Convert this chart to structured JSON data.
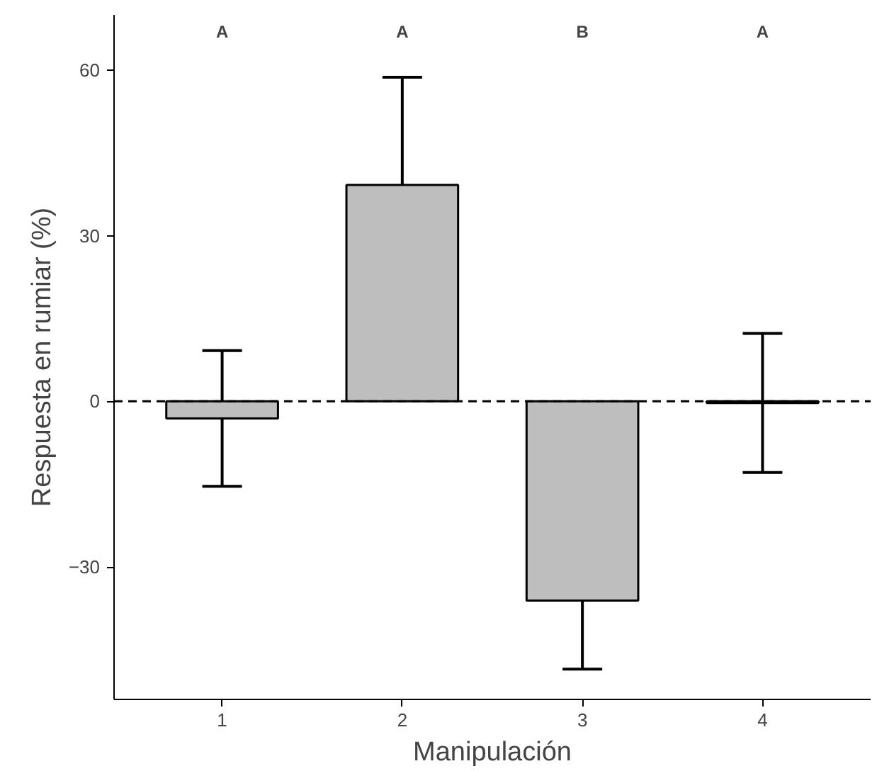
{
  "chart_data": {
    "type": "bar",
    "xlabel": "Manipulación",
    "ylabel": "Respuesta en rumiar (%)",
    "categories": [
      "1",
      "2",
      "3",
      "4"
    ],
    "values": [
      -3.1,
      39.2,
      -36.1,
      -0.3
    ],
    "errors": [
      12.3,
      19.5,
      12.4,
      12.6
    ],
    "color": "#bebebe",
    "ylim": [
      -54,
      70
    ],
    "yticks": [
      -30,
      0,
      30,
      60
    ],
    "ref_lines": [
      {
        "axis": "y",
        "value": 0,
        "line_style": "dashed"
      }
    ],
    "annotations": [
      "A",
      "A",
      "B",
      "A"
    ],
    "grid": false
  }
}
